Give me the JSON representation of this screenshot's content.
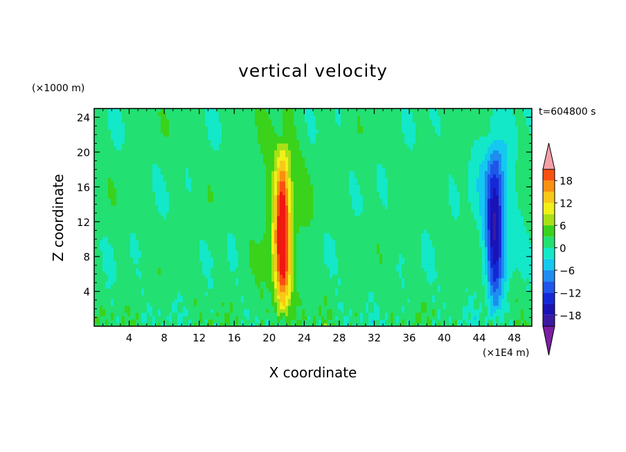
{
  "chart_data": {
    "type": "heatmap",
    "title": "vertical velocity",
    "xlabel": "X coordinate",
    "ylabel": "Z coordinate",
    "x_unit": "(×1E4 m)",
    "y_unit": "(×1000 m)",
    "time_label": "t=604800 s",
    "xlim": [
      0,
      50
    ],
    "ylim": [
      0,
      25
    ],
    "x_ticks": [
      4,
      8,
      12,
      16,
      20,
      24,
      28,
      32,
      36,
      40,
      44,
      48
    ],
    "y_ticks": [
      4,
      8,
      12,
      16,
      20,
      24
    ],
    "colorbar": {
      "ticks": [
        18,
        12,
        6,
        0,
        -6,
        -12,
        -18
      ],
      "levels": [
        -21,
        -18,
        -15,
        -12,
        -9,
        -6,
        -3,
        0,
        3,
        6,
        9,
        12,
        15,
        18,
        21
      ],
      "colors": [
        "#7a1fa2",
        "#3a1aa0",
        "#1b12b4",
        "#1428d6",
        "#1f55e8",
        "#1f8cf0",
        "#14c8f0",
        "#13e8c8",
        "#22e072",
        "#3ad21a",
        "#a8e016",
        "#f0f018",
        "#f8c818",
        "#f89010",
        "#f85010",
        "#f01810",
        "#f4a0a8"
      ]
    },
    "features": [
      {
        "name": "updraft core",
        "x": 21.5,
        "z_range": [
          0.5,
          23.5
        ],
        "max_value": 21
      },
      {
        "name": "downdraft core",
        "x": 45.8,
        "z_range": [
          1.5,
          22.5
        ],
        "min_value": -15
      }
    ]
  }
}
